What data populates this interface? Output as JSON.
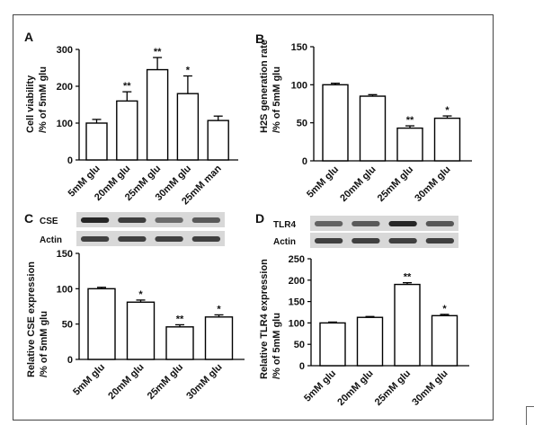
{
  "chart_data": [
    {
      "panel": "A",
      "type": "bar",
      "ylabel": "Cell viability",
      "ylabel2": "/% of 5mM glu",
      "ylim": [
        0,
        300
      ],
      "yticks": [
        0,
        100,
        200,
        300
      ],
      "categories": [
        "5mM glu",
        "20mM glu",
        "25mM glu",
        "30mM glu",
        "25mM man"
      ],
      "values": [
        100,
        160,
        245,
        180,
        107
      ],
      "errors": [
        10,
        25,
        33,
        48,
        12
      ],
      "significance": [
        "",
        "**",
        "**",
        "*",
        ""
      ]
    },
    {
      "panel": "B",
      "type": "bar",
      "ylabel": "H2S generation rate",
      "ylabel2": "/% of 5mM glu",
      "ylim": [
        0,
        150
      ],
      "yticks": [
        0,
        50,
        100,
        150
      ],
      "categories": [
        "5mM glu",
        "20mM glu",
        "25mM glu",
        "30mM glu"
      ],
      "values": [
        100,
        85,
        43,
        56
      ],
      "errors": [
        2,
        2,
        3,
        3
      ],
      "significance": [
        "",
        "",
        "**",
        "*"
      ]
    },
    {
      "panel": "C",
      "type": "bar",
      "ylabel": "Relative CSE expression",
      "ylabel2": "/% of 5mM glu",
      "ylim": [
        0,
        150
      ],
      "yticks": [
        0,
        50,
        100,
        150
      ],
      "categories": [
        "5mM glu",
        "20mM glu",
        "25mM glu",
        "30mM glu"
      ],
      "values": [
        100,
        81,
        46,
        60
      ],
      "errors": [
        2,
        3,
        3,
        3
      ],
      "significance": [
        "",
        "*",
        "**",
        "*"
      ],
      "blot_labels": [
        "CSE",
        "Actin"
      ]
    },
    {
      "panel": "D",
      "type": "bar",
      "ylabel": "Relative TLR4 expression",
      "ylabel2": "/% of 5mM glu",
      "ylim": [
        0,
        250
      ],
      "yticks": [
        0,
        50,
        100,
        150,
        200,
        250
      ],
      "categories": [
        "5mM glu",
        "20mM glu",
        "25mM glu",
        "30mM glu"
      ],
      "values": [
        100,
        113,
        190,
        117
      ],
      "errors": [
        2,
        2,
        4,
        3
      ],
      "significance": [
        "",
        "",
        "**",
        "*"
      ],
      "blot_labels": [
        "TLR4",
        "Actin"
      ]
    }
  ]
}
